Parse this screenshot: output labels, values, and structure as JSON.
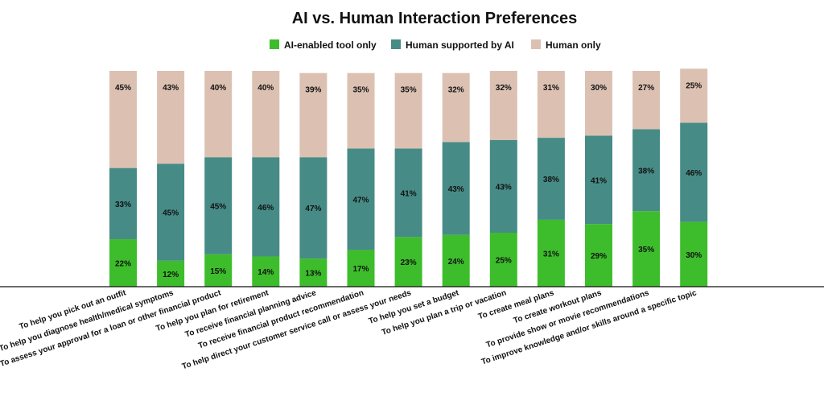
{
  "chart_data": {
    "type": "bar",
    "stacked": true,
    "title": "AI vs. Human Interaction Preferences",
    "legend_position": "top",
    "categories": [
      "To help you pick out an outfit",
      "To help you diagnose health/medical symptoms",
      "To assess your approval for a loan or other financial product",
      "To help you plan for retirement",
      "To receive financial planning advice",
      "To receive financial product recommendation",
      "To help direct your customer service call or assess your needs",
      "To help you set a budget",
      "To help you plan a trip or vacation",
      "To create meal plans",
      "To create workout plans",
      "To provide show or movie recommendations",
      "To improve knowledge and/or skills around a specific topic"
    ],
    "series": [
      {
        "name": "AI-enabled tool only",
        "color": "#3dbd2b",
        "values": [
          22,
          12,
          15,
          14,
          13,
          17,
          23,
          24,
          25,
          31,
          29,
          35,
          30
        ]
      },
      {
        "name": "Human supported by AI",
        "color": "#478b86",
        "values": [
          33,
          45,
          45,
          46,
          47,
          47,
          41,
          43,
          43,
          38,
          41,
          38,
          46
        ]
      },
      {
        "name": "Human only",
        "color": "#dcc1b2",
        "values": [
          45,
          43,
          40,
          40,
          39,
          35,
          35,
          32,
          32,
          31,
          30,
          27,
          25
        ]
      }
    ],
    "value_suffix": "%",
    "ylim": [
      0,
      100
    ],
    "grid": false
  }
}
